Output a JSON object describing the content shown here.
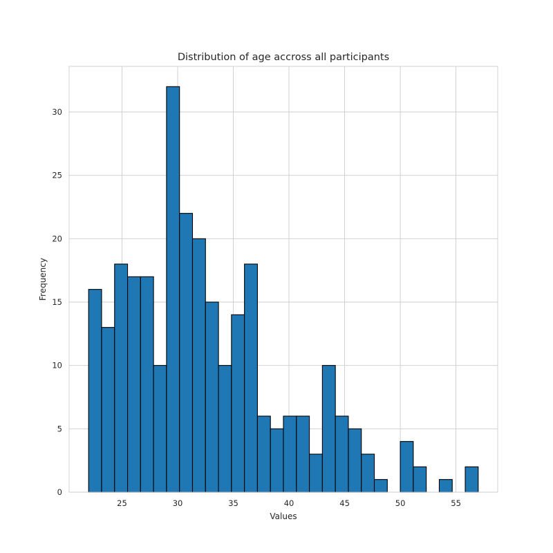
{
  "chart_data": {
    "type": "bar",
    "title": "Distribution of age accross all participants",
    "xlabel": "Values",
    "ylabel": "Frequency",
    "bins": {
      "start": 22,
      "end": 57,
      "count": 30
    },
    "values": [
      16,
      13,
      18,
      17,
      17,
      10,
      32,
      22,
      20,
      15,
      10,
      14,
      18,
      6,
      5,
      6,
      6,
      3,
      10,
      6,
      5,
      3,
      1,
      0,
      4,
      2,
      0,
      1,
      0,
      2
    ],
    "xlim": [
      20.25,
      58.75
    ],
    "ylim": [
      0,
      33.6
    ],
    "xticks": [
      25,
      30,
      35,
      40,
      45,
      50,
      55
    ],
    "yticks": [
      0,
      5,
      10,
      15,
      20,
      25,
      30
    ],
    "grid": true,
    "legend": "none",
    "colors": {
      "bar": "#1f77b4",
      "edge": "#000000",
      "grid": "#cccccc"
    }
  }
}
